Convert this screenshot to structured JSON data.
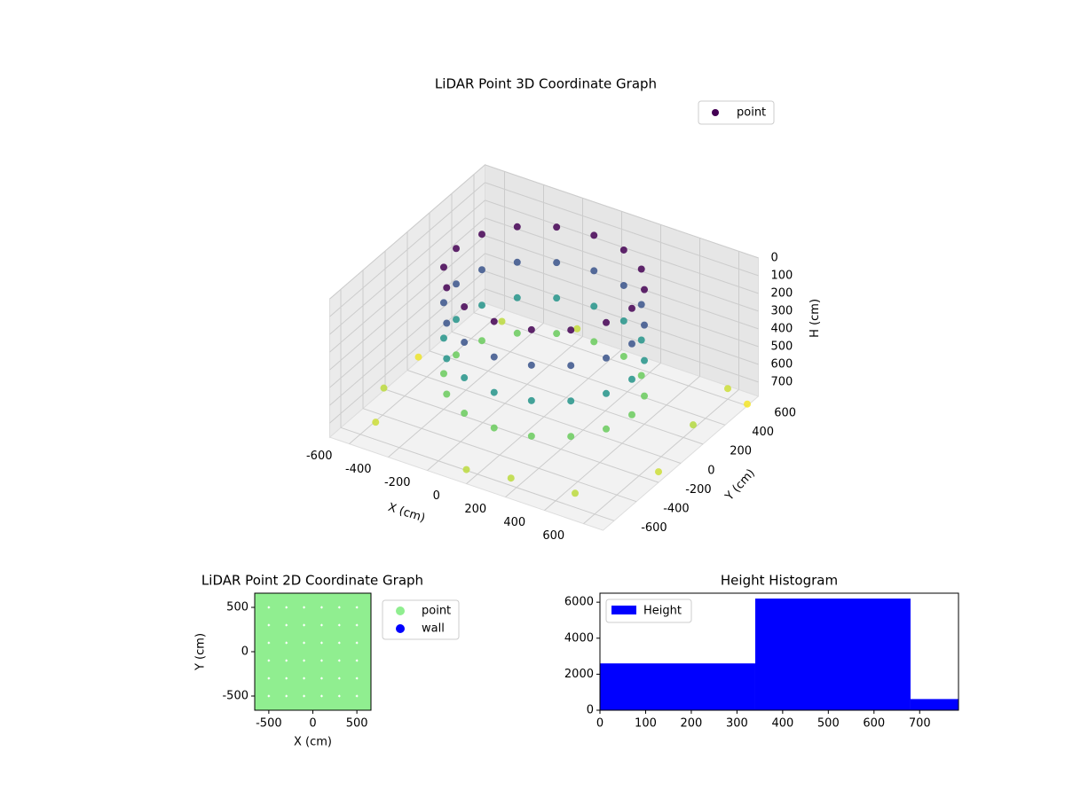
{
  "chart_data": [
    {
      "type": "scatter3d",
      "title": "LiDAR Point 3D Coordinate Graph",
      "xlabel": "X (cm)",
      "ylabel": "Y (cm)",
      "zlabel": "H (cm)",
      "xlim": [
        -700,
        700
      ],
      "ylim": [
        -700,
        700
      ],
      "zlim": [
        780,
        0
      ],
      "xticks": [
        -600,
        -400,
        -200,
        0,
        200,
        400,
        600
      ],
      "yticks": [
        -600,
        -400,
        -200,
        0,
        200,
        400,
        600
      ],
      "zticks": [
        0,
        100,
        200,
        300,
        400,
        500,
        600,
        700
      ],
      "legend": "upper right",
      "colormap": "viridis",
      "series": [
        {
          "name": "point",
          "x": [
            450,
            416,
            318,
            172,
            0,
            -172,
            -318,
            -416,
            -450,
            -416,
            -318,
            -172,
            0,
            172,
            318,
            416,
            450,
            416,
            318,
            172,
            0,
            -172,
            -318,
            -416,
            -450,
            -416,
            -318,
            -172,
            0,
            172,
            318,
            416,
            450,
            416,
            318,
            172,
            0,
            -172,
            -318,
            -416,
            -450,
            -416,
            -318,
            -172,
            0,
            172,
            318,
            416,
            450,
            416,
            318,
            172,
            0,
            -172,
            -318,
            -416,
            -450,
            -416,
            -318,
            -172,
            0,
            172,
            318,
            416,
            -650,
            600,
            -500,
            700,
            200,
            -200,
            650,
            -700,
            500,
            0,
            -550,
            700
          ],
          "y": [
            0,
            172,
            318,
            416,
            450,
            416,
            318,
            172,
            0,
            -172,
            -318,
            -416,
            -450,
            -416,
            -318,
            -172,
            0,
            172,
            318,
            416,
            450,
            416,
            318,
            172,
            0,
            -172,
            -318,
            -416,
            -450,
            -416,
            -318,
            -172,
            0,
            172,
            318,
            416,
            450,
            416,
            318,
            172,
            0,
            -172,
            -318,
            -416,
            -450,
            -416,
            -318,
            -172,
            0,
            172,
            318,
            416,
            450,
            416,
            318,
            172,
            0,
            -172,
            -318,
            -416,
            -450,
            -416,
            -318,
            -172,
            -300,
            600,
            500,
            -200,
            -650,
            650,
            200,
            100,
            -600,
            -700,
            -550,
            600
          ],
          "h": [
            0,
            0,
            0,
            0,
            0,
            0,
            0,
            0,
            0,
            0,
            0,
            0,
            0,
            0,
            0,
            0,
            200,
            200,
            200,
            200,
            200,
            200,
            200,
            200,
            200,
            200,
            200,
            200,
            200,
            200,
            200,
            200,
            400,
            400,
            400,
            400,
            400,
            400,
            400,
            400,
            400,
            400,
            400,
            400,
            400,
            400,
            400,
            400,
            600,
            600,
            600,
            600,
            600,
            600,
            600,
            600,
            600,
            600,
            600,
            600,
            600,
            600,
            600,
            600,
            700,
            720,
            700,
            720,
            700,
            710,
            690,
            760,
            700,
            700,
            720,
            770
          ]
        }
      ]
    },
    {
      "type": "scatter",
      "title": "LiDAR Point 2D Coordinate Graph",
      "xlabel": "X (cm)",
      "ylabel": "Y (cm)",
      "xlim": [
        -660,
        660
      ],
      "ylim": [
        -660,
        660
      ],
      "xticks": [
        -500,
        0,
        500
      ],
      "yticks": [
        -500,
        0,
        500
      ],
      "legend": "outside right",
      "series": [
        {
          "name": "point",
          "color": "#90ee90",
          "x": [
            -600,
            -400,
            -200,
            0,
            200,
            400,
            600,
            -600,
            -400,
            -200,
            0,
            200,
            400,
            600,
            -600,
            -400,
            -200,
            0,
            200,
            400,
            600,
            -600,
            -400,
            -200,
            0,
            200,
            400,
            600,
            -600,
            -400,
            -200,
            0,
            200,
            400,
            600,
            -600,
            -400,
            -200,
            0,
            200,
            400,
            600,
            -600,
            -400,
            -200,
            0,
            200,
            400,
            600
          ],
          "y": [
            -600,
            -600,
            -600,
            -600,
            -600,
            -600,
            -600,
            -400,
            -400,
            -400,
            -400,
            -400,
            -400,
            -400,
            -200,
            -200,
            -200,
            -200,
            -200,
            -200,
            -200,
            0,
            0,
            0,
            0,
            0,
            0,
            0,
            200,
            200,
            200,
            200,
            200,
            200,
            200,
            400,
            400,
            400,
            400,
            400,
            400,
            400,
            600,
            600,
            600,
            600,
            600,
            600,
            600
          ]
        },
        {
          "name": "wall",
          "color": "#0000ff",
          "x": [],
          "y": []
        }
      ]
    },
    {
      "type": "histogram",
      "title": "Height Histogram",
      "xlim": [
        0,
        785
      ],
      "ylim": [
        0,
        6500
      ],
      "xticks": [
        0,
        100,
        200,
        300,
        400,
        500,
        600,
        700
      ],
      "yticks": [
        0,
        2000,
        4000,
        6000
      ],
      "legend": "upper left",
      "series": [
        {
          "name": "Height",
          "color": "#0000ff",
          "bins": [
            0,
            340,
            680,
            785
          ],
          "values": [
            2600,
            6200,
            620
          ]
        }
      ]
    }
  ]
}
